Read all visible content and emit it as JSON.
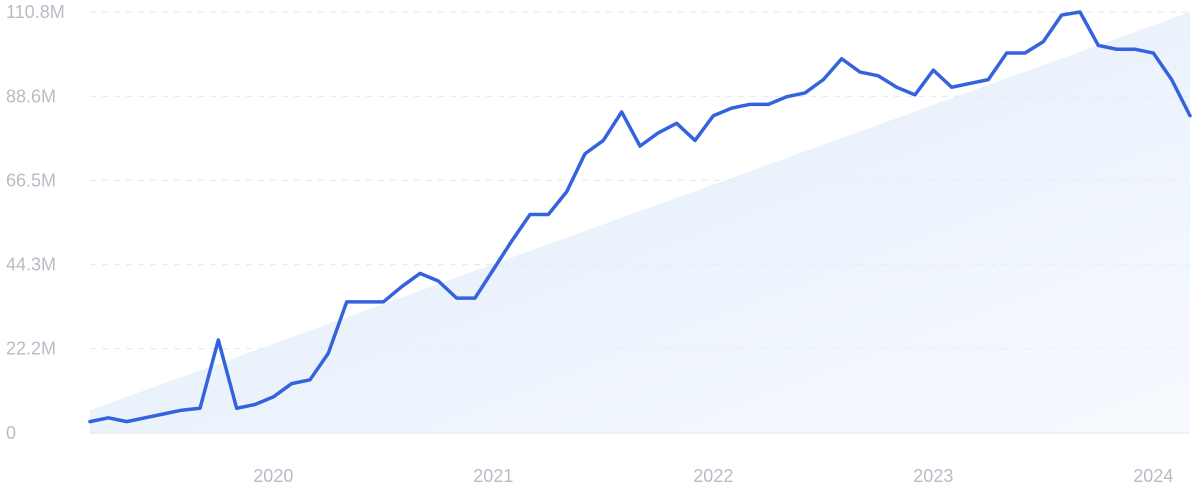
{
  "chart_data": {
    "type": "area",
    "title": "",
    "xlabel": "",
    "ylabel": "",
    "xlim": [
      "2019-03",
      "2024-03"
    ],
    "ylim": [
      0,
      110.8
    ],
    "grid": true,
    "legend": "none",
    "y_ticks": [
      {
        "value": 0,
        "label": "0"
      },
      {
        "value": 22.2,
        "label": "22.2M"
      },
      {
        "value": 44.3,
        "label": "44.3M"
      },
      {
        "value": 66.5,
        "label": "66.5M"
      },
      {
        "value": 88.6,
        "label": "88.6M"
      },
      {
        "value": 110.8,
        "label": "110.8M"
      }
    ],
    "x_ticks": [
      {
        "value": "2020-01",
        "label": "2020"
      },
      {
        "value": "2021-01",
        "label": "2021"
      },
      {
        "value": "2022-01",
        "label": "2022"
      },
      {
        "value": "2023-01",
        "label": "2023"
      },
      {
        "value": "2024-01",
        "label": "2024"
      }
    ],
    "series": [
      {
        "color": "#3563dd",
        "points": [
          [
            "2019-03",
            3.0
          ],
          [
            "2019-04",
            4.0
          ],
          [
            "2019-05",
            3.0
          ],
          [
            "2019-06",
            4.0
          ],
          [
            "2019-07",
            5.0
          ],
          [
            "2019-08",
            6.0
          ],
          [
            "2019-09",
            6.5
          ],
          [
            "2019-10",
            24.5
          ],
          [
            "2019-11",
            6.5
          ],
          [
            "2019-12",
            7.5
          ],
          [
            "2020-01",
            9.5
          ],
          [
            "2020-02",
            13.0
          ],
          [
            "2020-03",
            14.0
          ],
          [
            "2020-04",
            21.0
          ],
          [
            "2020-05",
            34.5
          ],
          [
            "2020-06",
            34.5
          ],
          [
            "2020-07",
            34.5
          ],
          [
            "2020-08",
            38.5
          ],
          [
            "2020-09",
            42.0
          ],
          [
            "2020-10",
            40.0
          ],
          [
            "2020-11",
            35.5
          ],
          [
            "2020-12",
            35.5
          ],
          [
            "2021-01",
            43.0
          ],
          [
            "2021-02",
            50.5
          ],
          [
            "2021-03",
            57.5
          ],
          [
            "2021-04",
            57.5
          ],
          [
            "2021-05",
            63.5
          ],
          [
            "2021-06",
            73.5
          ],
          [
            "2021-07",
            77.0
          ],
          [
            "2021-08",
            84.5
          ],
          [
            "2021-09",
            75.5
          ],
          [
            "2021-10",
            79.0
          ],
          [
            "2021-11",
            81.5
          ],
          [
            "2021-12",
            77.0
          ],
          [
            "2022-01",
            83.5
          ],
          [
            "2022-02",
            85.5
          ],
          [
            "2022-03",
            86.5
          ],
          [
            "2022-04",
            86.5
          ],
          [
            "2022-05",
            88.5
          ],
          [
            "2022-06",
            89.5
          ],
          [
            "2022-07",
            93.0
          ],
          [
            "2022-08",
            98.5
          ],
          [
            "2022-09",
            95.0
          ],
          [
            "2022-10",
            94.0
          ],
          [
            "2022-11",
            91.0
          ],
          [
            "2022-12",
            89.0
          ],
          [
            "2023-01",
            95.5
          ],
          [
            "2023-02",
            91.0
          ],
          [
            "2023-03",
            92.0
          ],
          [
            "2023-04",
            93.0
          ],
          [
            "2023-05",
            100.0
          ],
          [
            "2023-06",
            100.0
          ],
          [
            "2023-07",
            103.0
          ],
          [
            "2023-08",
            110.0
          ],
          [
            "2023-09",
            110.8
          ],
          [
            "2023-10",
            102.0
          ],
          [
            "2023-11",
            101.0
          ],
          [
            "2023-12",
            101.0
          ],
          [
            "2024-01",
            100.0
          ],
          [
            "2024-02",
            93.0
          ],
          [
            "2024-03",
            83.5
          ]
        ]
      }
    ],
    "trend": {
      "color": "#dde9fb",
      "from": [
        "2019-03",
        6.0
      ],
      "to": [
        "2024-03",
        110.8
      ]
    }
  }
}
